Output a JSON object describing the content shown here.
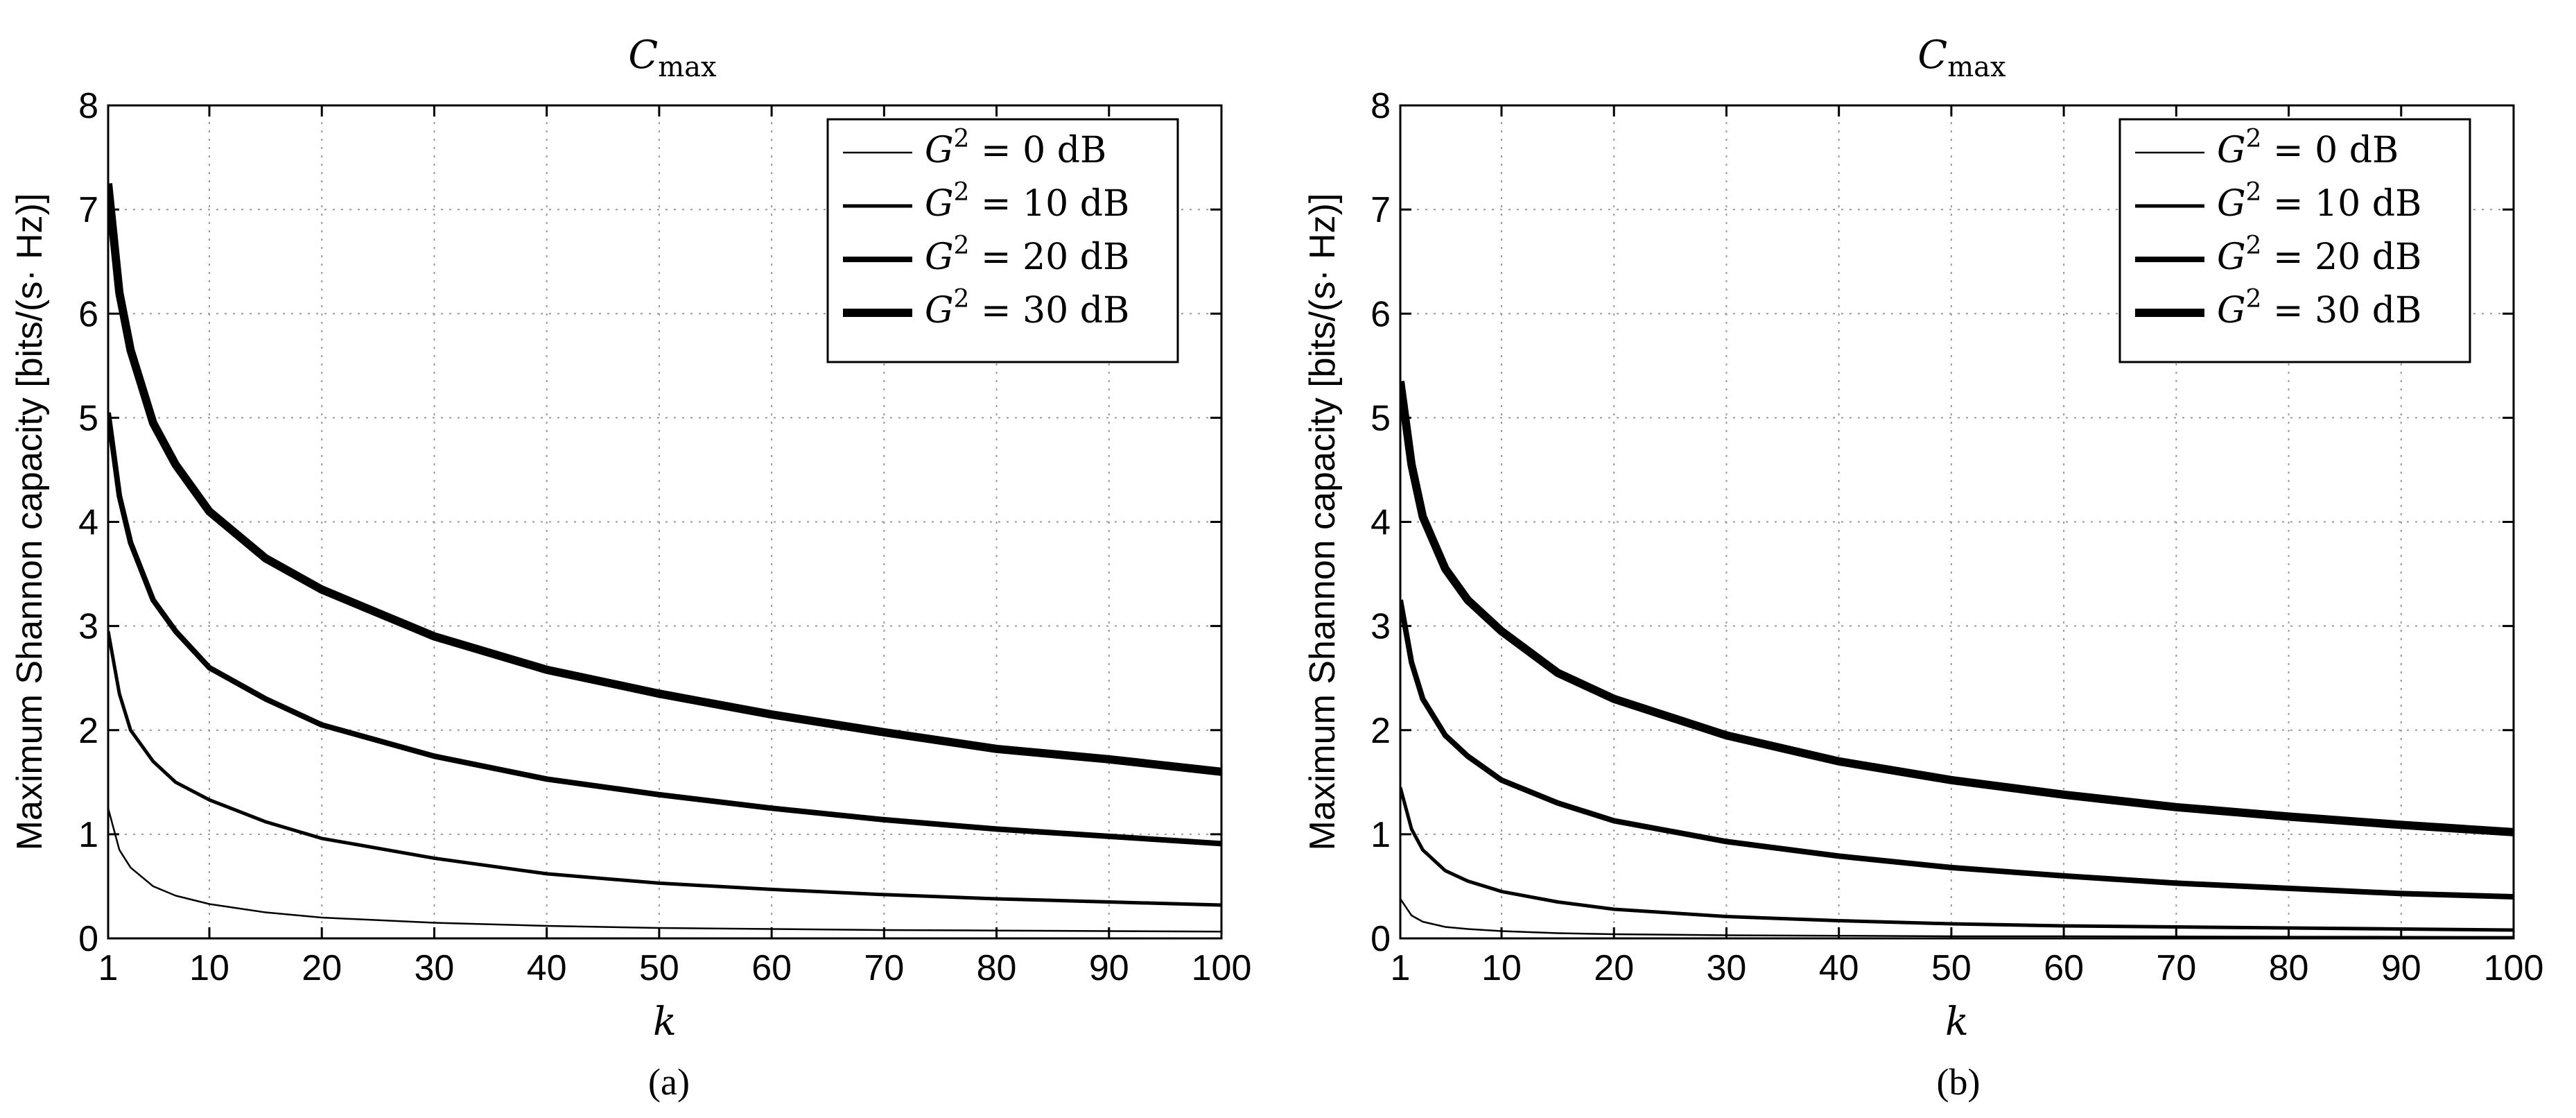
{
  "chart_data": [
    {
      "type": "line",
      "title": "C_max",
      "title_main": "C",
      "title_sub": "max",
      "xlabel": "k",
      "ylabel": "Maximum Shannon capacity [bits/(s· Hz)]",
      "panel_label": "(a)",
      "xlim": [
        1,
        100
      ],
      "ylim": [
        0,
        8
      ],
      "xticks": [
        1,
        10,
        20,
        30,
        40,
        50,
        60,
        70,
        80,
        90,
        100
      ],
      "yticks": [
        0,
        1,
        2,
        3,
        4,
        5,
        6,
        7,
        8
      ],
      "grid": true,
      "legend_position": "top-right",
      "x": [
        1,
        2,
        3,
        5,
        7,
        10,
        15,
        20,
        30,
        40,
        50,
        60,
        70,
        80,
        90,
        100
      ],
      "series": [
        {
          "name": "G² = 0 dB",
          "legend_var": "G",
          "legend_sup": "2",
          "legend_rest": " = 0 dB",
          "line_width": 2.5,
          "values": [
            1.25,
            0.85,
            0.68,
            0.5,
            0.41,
            0.33,
            0.25,
            0.2,
            0.15,
            0.12,
            0.1,
            0.09,
            0.08,
            0.075,
            0.07,
            0.065
          ]
        },
        {
          "name": "G² = 10 dB",
          "legend_var": "G",
          "legend_sup": "2",
          "legend_rest": " = 10 dB",
          "line_width": 5,
          "values": [
            2.95,
            2.35,
            2.0,
            1.7,
            1.5,
            1.33,
            1.12,
            0.96,
            0.77,
            0.62,
            0.53,
            0.47,
            0.42,
            0.38,
            0.35,
            0.32
          ]
        },
        {
          "name": "G² = 20 dB",
          "legend_var": "G",
          "legend_sup": "2",
          "legend_rest": " = 20 dB",
          "line_width": 8,
          "values": [
            5.05,
            4.25,
            3.8,
            3.25,
            2.95,
            2.6,
            2.3,
            2.05,
            1.75,
            1.53,
            1.38,
            1.25,
            1.14,
            1.05,
            0.98,
            0.91
          ]
        },
        {
          "name": "G² = 30 dB",
          "legend_var": "G",
          "legend_sup": "2",
          "legend_rest": " = 30 dB",
          "line_width": 12,
          "values": [
            7.25,
            6.2,
            5.65,
            4.95,
            4.55,
            4.1,
            3.65,
            3.35,
            2.9,
            2.58,
            2.35,
            2.15,
            1.98,
            1.82,
            1.72,
            1.6
          ]
        }
      ]
    },
    {
      "type": "line",
      "title": "C_max",
      "title_main": "C",
      "title_sub": "max",
      "xlabel": "k",
      "ylabel": "Maximum Shannon capacity [bits/(s· Hz)]",
      "panel_label": "(b)",
      "xlim": [
        1,
        100
      ],
      "ylim": [
        0,
        8
      ],
      "xticks": [
        1,
        10,
        20,
        30,
        40,
        50,
        60,
        70,
        80,
        90,
        100
      ],
      "yticks": [
        0,
        1,
        2,
        3,
        4,
        5,
        6,
        7,
        8
      ],
      "grid": true,
      "legend_position": "top-right",
      "x": [
        1,
        2,
        3,
        5,
        7,
        10,
        15,
        20,
        30,
        40,
        50,
        60,
        70,
        80,
        90,
        100
      ],
      "series": [
        {
          "name": "G² = 0 dB",
          "legend_var": "G",
          "legend_sup": "2",
          "legend_rest": " = 0 dB",
          "line_width": 2.5,
          "values": [
            0.38,
            0.22,
            0.16,
            0.11,
            0.09,
            0.07,
            0.05,
            0.04,
            0.03,
            0.025,
            0.02,
            0.02,
            0.018,
            0.016,
            0.015,
            0.014
          ]
        },
        {
          "name": "G² = 10 dB",
          "legend_var": "G",
          "legend_sup": "2",
          "legend_rest": " = 10 dB",
          "line_width": 5,
          "values": [
            1.45,
            1.05,
            0.85,
            0.65,
            0.55,
            0.45,
            0.35,
            0.28,
            0.21,
            0.17,
            0.14,
            0.12,
            0.11,
            0.1,
            0.09,
            0.08
          ]
        },
        {
          "name": "G² = 20 dB",
          "legend_var": "G",
          "legend_sup": "2",
          "legend_rest": " = 20 dB",
          "line_width": 8,
          "values": [
            3.25,
            2.65,
            2.3,
            1.95,
            1.75,
            1.52,
            1.3,
            1.13,
            0.93,
            0.79,
            0.68,
            0.6,
            0.53,
            0.48,
            0.43,
            0.4
          ]
        },
        {
          "name": "G² = 30 dB",
          "legend_var": "G",
          "legend_sup": "2",
          "legend_rest": " = 30 dB",
          "line_width": 12,
          "values": [
            5.35,
            4.55,
            4.05,
            3.55,
            3.25,
            2.95,
            2.55,
            2.3,
            1.95,
            1.7,
            1.52,
            1.38,
            1.26,
            1.17,
            1.09,
            1.02
          ]
        }
      ]
    }
  ]
}
